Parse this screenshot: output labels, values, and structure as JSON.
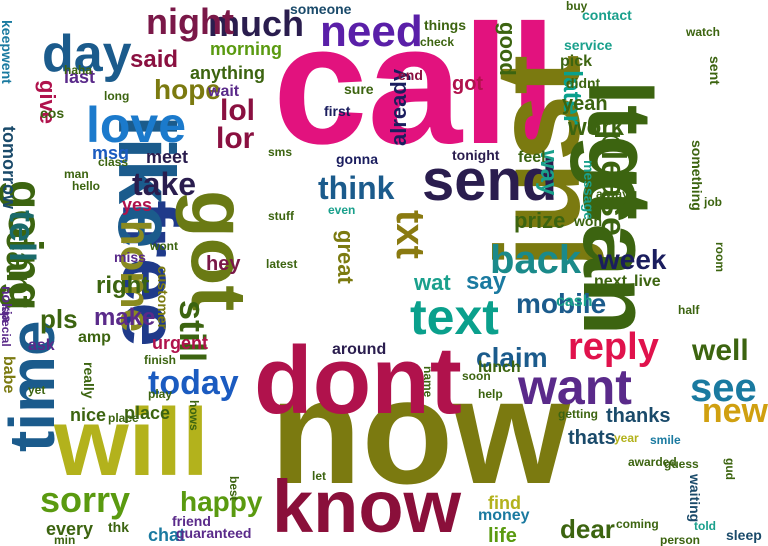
{
  "words": [
    {
      "text": "call",
      "color": "#e2127e",
      "size": 170,
      "rot": 0
    },
    {
      "text": "now",
      "color": "#7b7a10",
      "size": 150,
      "rot": 0
    },
    {
      "text": "just",
      "color": "#7b7a10",
      "size": 120,
      "rot": -90
    },
    {
      "text": "ltgt",
      "color": "#3c6410",
      "size": 90,
      "rot": 90
    },
    {
      "text": "can",
      "color": "#3c6410",
      "size": 96,
      "rot": 90
    },
    {
      "text": "dont",
      "color": "#b0124c",
      "size": 96,
      "rot": 0
    },
    {
      "text": "will",
      "color": "#b3b21c",
      "size": 96,
      "rot": 0
    },
    {
      "text": "know",
      "color": "#8a0f3a",
      "size": 74,
      "rot": 0
    },
    {
      "text": "free",
      "color": "#1f3a8a",
      "size": 80,
      "rot": 90
    },
    {
      "text": "got",
      "color": "#6a7a14",
      "size": 78,
      "rot": 90
    },
    {
      "text": "like",
      "color": "#1b5b8c",
      "size": 80,
      "rot": 90
    },
    {
      "text": "time",
      "color": "#1b5b8c",
      "size": 64,
      "rot": -90
    },
    {
      "text": "send",
      "color": "#2a1d4e",
      "size": 58,
      "rot": 0
    },
    {
      "text": "want",
      "color": "#5a2a8a",
      "size": 50,
      "rot": 0
    },
    {
      "text": "text",
      "color": "#0aa08c",
      "size": 50,
      "rot": 0
    },
    {
      "text": "back",
      "color": "#1a8a8a",
      "size": 40,
      "rot": 0
    },
    {
      "text": "day",
      "color": "#1b5b8c",
      "size": 52,
      "rot": 0
    },
    {
      "text": "love",
      "color": "#1b7acc",
      "size": 50,
      "rot": 0
    },
    {
      "text": "need",
      "color": "#5a1fa8",
      "size": 44,
      "rot": 0
    },
    {
      "text": "going",
      "color": "#3c6410",
      "size": 48,
      "rot": 90
    },
    {
      "text": "home",
      "color": "#8a8a20",
      "size": 42,
      "rot": 90
    },
    {
      "text": "much",
      "color": "#2a1d4e",
      "size": 36,
      "rot": 0
    },
    {
      "text": "night",
      "color": "#7a1848",
      "size": 36,
      "rot": 0
    },
    {
      "text": "reply",
      "color": "#e0124c",
      "size": 38,
      "rot": 0
    },
    {
      "text": "today",
      "color": "#1b5bc0",
      "size": 34,
      "rot": 0
    },
    {
      "text": "sorry",
      "color": "#5a9a10",
      "size": 36,
      "rot": 0
    },
    {
      "text": "see",
      "color": "#1a7aa0",
      "size": 40,
      "rot": 0
    },
    {
      "text": "new",
      "color": "#d0a010",
      "size": 34,
      "rot": 0
    },
    {
      "text": "well",
      "color": "#3c6410",
      "size": 30,
      "rot": 0
    },
    {
      "text": "please",
      "color": "#3c6410",
      "size": 34,
      "rot": 90
    },
    {
      "text": "txt",
      "color": "#8a7a10",
      "size": 40,
      "rot": 90
    },
    {
      "text": "cant",
      "color": "#3c6410",
      "size": 38,
      "rot": 90
    },
    {
      "text": "tell",
      "color": "#1a6a6a",
      "size": 36,
      "rot": 90
    },
    {
      "text": "still",
      "color": "#3c6410",
      "size": 36,
      "rot": 90
    },
    {
      "text": "think",
      "color": "#1b5b8c",
      "size": 32,
      "rot": 0
    },
    {
      "text": "take",
      "color": "#2a1d4e",
      "size": 32,
      "rot": 0
    },
    {
      "text": "mobile",
      "color": "#1b5b8c",
      "size": 28,
      "rot": 0
    },
    {
      "text": "claim",
      "color": "#1b5b8c",
      "size": 28,
      "rot": 0
    },
    {
      "text": "week",
      "color": "#1a1d5e",
      "size": 28,
      "rot": 0
    },
    {
      "text": "happy",
      "color": "#5a9a10",
      "size": 28,
      "rot": 0
    },
    {
      "text": "lol",
      "color": "#8a1040",
      "size": 30,
      "rot": 0
    },
    {
      "text": "lor",
      "color": "#8a1040",
      "size": 30,
      "rot": 0
    },
    {
      "text": "hope",
      "color": "#7b7a10",
      "size": 28,
      "rot": 0
    },
    {
      "text": "said",
      "color": "#8a1040",
      "size": 24,
      "rot": 0
    },
    {
      "text": "make",
      "color": "#5a2a8a",
      "size": 24,
      "rot": 0
    },
    {
      "text": "right",
      "color": "#3c6410",
      "size": 24,
      "rot": 0
    },
    {
      "text": "pls",
      "color": "#3c6410",
      "size": 26,
      "rot": 0
    },
    {
      "text": "got",
      "color": "#b0124c",
      "size": 20,
      "rot": 0
    },
    {
      "text": "way",
      "color": "#1aa08c",
      "size": 24,
      "rot": 90
    },
    {
      "text": "work",
      "color": "#3c6410",
      "size": 24,
      "rot": 0
    },
    {
      "text": "later",
      "color": "#0aa08c",
      "size": 26,
      "rot": 90
    },
    {
      "text": "yeah",
      "color": "#3c6410",
      "size": 20,
      "rot": 0
    },
    {
      "text": "wat",
      "color": "#1aa08c",
      "size": 22,
      "rot": 0
    },
    {
      "text": "say",
      "color": "#1a7aa0",
      "size": 24,
      "rot": 0
    },
    {
      "text": "great",
      "color": "#7b7a10",
      "size": 22,
      "rot": 90
    },
    {
      "text": "prize",
      "color": "#3c6410",
      "size": 22,
      "rot": 0
    },
    {
      "text": "already",
      "color": "#1a1d5e",
      "size": 22,
      "rot": -90
    },
    {
      "text": "good",
      "color": "#3c6410",
      "size": 22,
      "rot": 90
    },
    {
      "text": "every",
      "color": "#3c6410",
      "size": 18,
      "rot": 0
    },
    {
      "text": "chat",
      "color": "#1a7aa0",
      "size": 18,
      "rot": 0
    },
    {
      "text": "thanks",
      "color": "#1a4a6a",
      "size": 20,
      "rot": 0
    },
    {
      "text": "thats",
      "color": "#1a4a6a",
      "size": 20,
      "rot": 0
    },
    {
      "text": "dear",
      "color": "#3c6410",
      "size": 26,
      "rot": 0
    },
    {
      "text": "life",
      "color": "#5a9a10",
      "size": 20,
      "rot": 0
    },
    {
      "text": "find",
      "color": "#b3b21c",
      "size": 18,
      "rot": 0
    },
    {
      "text": "money",
      "color": "#1a7aa0",
      "size": 16,
      "rot": 0
    },
    {
      "text": "guaranteed",
      "color": "#5a2a8a",
      "size": 14,
      "rot": 0
    },
    {
      "text": "friend",
      "color": "#5a2a8a",
      "size": 14,
      "rot": 0
    },
    {
      "text": "place",
      "color": "#3c6410",
      "size": 18,
      "rot": 0
    },
    {
      "text": "nice",
      "color": "#3c6410",
      "size": 18,
      "rot": 0
    },
    {
      "text": "urgent",
      "color": "#b0124c",
      "size": 18,
      "rot": 0
    },
    {
      "text": "meet",
      "color": "#2a1d4e",
      "size": 18,
      "rot": 0
    },
    {
      "text": "msg",
      "color": "#1b5bc0",
      "size": 18,
      "rot": 0
    },
    {
      "text": "give",
      "color": "#b0124c",
      "size": 22,
      "rot": 90
    },
    {
      "text": "tomorrow",
      "color": "#1a4a6a",
      "size": 18,
      "rot": 90
    },
    {
      "text": "keepwent",
      "color": "#1a7aa0",
      "size": 14,
      "rot": 90
    },
    {
      "text": "last",
      "color": "#5a2a8a",
      "size": 18,
      "rot": 0
    },
    {
      "text": "morning",
      "color": "#5a9a10",
      "size": 18,
      "rot": 0
    },
    {
      "text": "anything",
      "color": "#3c6410",
      "size": 18,
      "rot": 0
    },
    {
      "text": "wait",
      "color": "#5a2a8a",
      "size": 16,
      "rot": 0
    },
    {
      "text": "yes",
      "color": "#b0124c",
      "size": 18,
      "rot": 0
    },
    {
      "text": "hey",
      "color": "#7a1848",
      "size": 20,
      "rot": 0
    },
    {
      "text": "amp",
      "color": "#3c6410",
      "size": 16,
      "rot": 0
    },
    {
      "text": "customer",
      "color": "#7b7a10",
      "size": 14,
      "rot": 90
    },
    {
      "text": "ask",
      "color": "#5a2a8a",
      "size": 16,
      "rot": 0
    },
    {
      "text": "babe",
      "color": "#7b7a10",
      "size": 16,
      "rot": 90
    },
    {
      "text": "around",
      "color": "#2a1d4e",
      "size": 16,
      "rot": 0
    },
    {
      "text": "lunch",
      "color": "#3c6410",
      "size": 16,
      "rot": 0
    },
    {
      "text": "cash",
      "color": "#1aa08c",
      "size": 16,
      "rot": 0
    },
    {
      "text": "next",
      "color": "#3c6410",
      "size": 16,
      "rot": 0
    },
    {
      "text": "live",
      "color": "#3c6410",
      "size": 16,
      "rot": 0
    },
    {
      "text": "feel",
      "color": "#3c6410",
      "size": 16,
      "rot": 0
    },
    {
      "text": "tonight",
      "color": "#2a1d4e",
      "size": 14,
      "rot": 0
    },
    {
      "text": "gonna",
      "color": "#1a1d5e",
      "size": 14,
      "rot": 0
    },
    {
      "text": "first",
      "color": "#1a1d5e",
      "size": 14,
      "rot": 0
    },
    {
      "text": "sure",
      "color": "#3c6410",
      "size": 14,
      "rot": 0
    },
    {
      "text": "end",
      "color": "#8a1040",
      "size": 14,
      "rot": 0
    },
    {
      "text": "someone",
      "color": "#1a4a6a",
      "size": 14,
      "rot": 0
    },
    {
      "text": "contact",
      "color": "#1aa08c",
      "size": 14,
      "rot": 0
    },
    {
      "text": "pick",
      "color": "#3c6410",
      "size": 16,
      "rot": 0
    },
    {
      "text": "didnt",
      "color": "#3c6410",
      "size": 14,
      "rot": 0
    },
    {
      "text": "service",
      "color": "#1aa08c",
      "size": 14,
      "rot": 0
    },
    {
      "text": "things",
      "color": "#3c6410",
      "size": 14,
      "rot": 0
    },
    {
      "text": "message",
      "color": "#1aa08c",
      "size": 14,
      "rot": 90
    },
    {
      "text": "won",
      "color": "#3c6410",
      "size": 14,
      "rot": 0
    },
    {
      "text": "sent",
      "color": "#3c6410",
      "size": 14,
      "rot": 90
    },
    {
      "text": "something",
      "color": "#3c6410",
      "size": 14,
      "rot": 90
    },
    {
      "text": "waiting",
      "color": "#1a4a6a",
      "size": 14,
      "rot": 90
    },
    {
      "text": "sleep",
      "color": "#1a4a6a",
      "size": 14,
      "rot": 0
    },
    {
      "text": "smile",
      "color": "#1a7aa0",
      "size": 12,
      "rot": 0
    },
    {
      "text": "year",
      "color": "#b3b21c",
      "size": 12,
      "rot": 0
    },
    {
      "text": "coming",
      "color": "#3c6410",
      "size": 12,
      "rot": 0
    },
    {
      "text": "told",
      "color": "#1aa08c",
      "size": 12,
      "rot": 0
    },
    {
      "text": "person",
      "color": "#3c6410",
      "size": 12,
      "rot": 0
    },
    {
      "text": "getting",
      "color": "#3c6410",
      "size": 12,
      "rot": 0
    },
    {
      "text": "class",
      "color": "#3c6410",
      "size": 12,
      "rot": 0
    },
    {
      "text": "hello",
      "color": "#3c6410",
      "size": 12,
      "rot": 0
    },
    {
      "text": "man",
      "color": "#3c6410",
      "size": 12,
      "rot": 0
    },
    {
      "text": "stuff",
      "color": "#3c6410",
      "size": 12,
      "rot": 0
    },
    {
      "text": "nokia",
      "color": "#5a2a8a",
      "size": 14,
      "rot": 90
    },
    {
      "text": "special",
      "color": "#5a2a8a",
      "size": 12,
      "rot": 90
    },
    {
      "text": "cos",
      "color": "#3c6410",
      "size": 14,
      "rot": 0
    },
    {
      "text": "haha",
      "color": "#3c6410",
      "size": 12,
      "rot": 0
    },
    {
      "text": "long",
      "color": "#3c6410",
      "size": 12,
      "rot": 0
    },
    {
      "text": "help",
      "color": "#3c6410",
      "size": 12,
      "rot": 0
    },
    {
      "text": "soon",
      "color": "#3c6410",
      "size": 12,
      "rot": 0
    },
    {
      "text": "miss",
      "color": "#5a2a8a",
      "size": 14,
      "rot": 0
    },
    {
      "text": "even",
      "color": "#1aa08c",
      "size": 12,
      "rot": 0
    },
    {
      "text": "latest",
      "color": "#3c6410",
      "size": 12,
      "rot": 0
    },
    {
      "text": "really",
      "color": "#3c6410",
      "size": 14,
      "rot": 90
    },
    {
      "text": "best",
      "color": "#3c6410",
      "size": 12,
      "rot": 90
    },
    {
      "text": "let",
      "color": "#3c6410",
      "size": 12,
      "rot": 0
    },
    {
      "text": "min",
      "color": "#3c6410",
      "size": 12,
      "rot": 0
    },
    {
      "text": "thk",
      "color": "#3c6410",
      "size": 14,
      "rot": 0
    },
    {
      "text": "yet",
      "color": "#3c6410",
      "size": 12,
      "rot": 0
    },
    {
      "text": "name",
      "color": "#3c6410",
      "size": 12,
      "rot": 90
    },
    {
      "text": "wont",
      "color": "#3c6410",
      "size": 12,
      "rot": 0
    },
    {
      "text": "awarded",
      "color": "#3c6410",
      "size": 12,
      "rot": 0
    },
    {
      "text": "guess",
      "color": "#3c6410",
      "size": 12,
      "rot": 0
    },
    {
      "text": "half",
      "color": "#3c6410",
      "size": 12,
      "rot": 0
    },
    {
      "text": "sms",
      "color": "#3c6410",
      "size": 12,
      "rot": 0
    },
    {
      "text": "always",
      "color": "#3c6410",
      "size": 12,
      "rot": 0
    },
    {
      "text": "gud",
      "color": "#3c6410",
      "size": 12,
      "rot": 90
    },
    {
      "text": "job",
      "color": "#3c6410",
      "size": 12,
      "rot": 0
    },
    {
      "text": "watch",
      "color": "#3c6410",
      "size": 12,
      "rot": 0
    },
    {
      "text": "room",
      "color": "#3c6410",
      "size": 12,
      "rot": 90
    },
    {
      "text": "finish",
      "color": "#3c6410",
      "size": 12,
      "rot": 0
    },
    {
      "text": "check",
      "color": "#3c6410",
      "size": 12,
      "rot": 0
    },
    {
      "text": "buy",
      "color": "#3c6410",
      "size": 12,
      "rot": 0
    },
    {
      "text": "hows",
      "color": "#3c6410",
      "size": 12,
      "rot": 90
    },
    {
      "text": "play",
      "color": "#3c6410",
      "size": 12,
      "rot": 0
    },
    {
      "text": "place",
      "color": "#3c6410",
      "size": 12,
      "rot": 0
    }
  ]
}
